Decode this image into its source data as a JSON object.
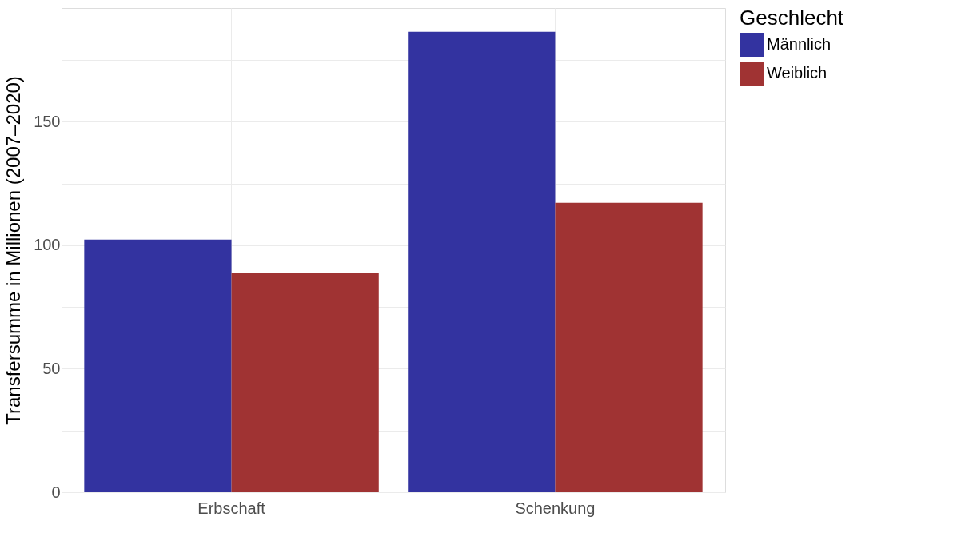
{
  "chart_data": {
    "type": "bar",
    "ylabel": "Transfersumme in Millionen (2007–2020)",
    "legend_title": "Geschlecht",
    "categories": [
      "Erbschaft",
      "Schenkung"
    ],
    "series": [
      {
        "name": "Männlich",
        "color": "#3333a0",
        "values": [
          102.3,
          186.4
        ]
      },
      {
        "name": "Weiblich",
        "color": "#a03333",
        "values": [
          88.6,
          117.2
        ]
      }
    ],
    "ylim": [
      0,
      196
    ],
    "yticks": [
      0,
      {
        "value": 25,
        "label": null
      },
      50,
      {
        "value": 75,
        "label": null
      },
      100,
      {
        "value": 125,
        "label": null
      },
      150,
      {
        "value": 175,
        "label": null
      }
    ],
    "grid": true,
    "legend": "right"
  }
}
